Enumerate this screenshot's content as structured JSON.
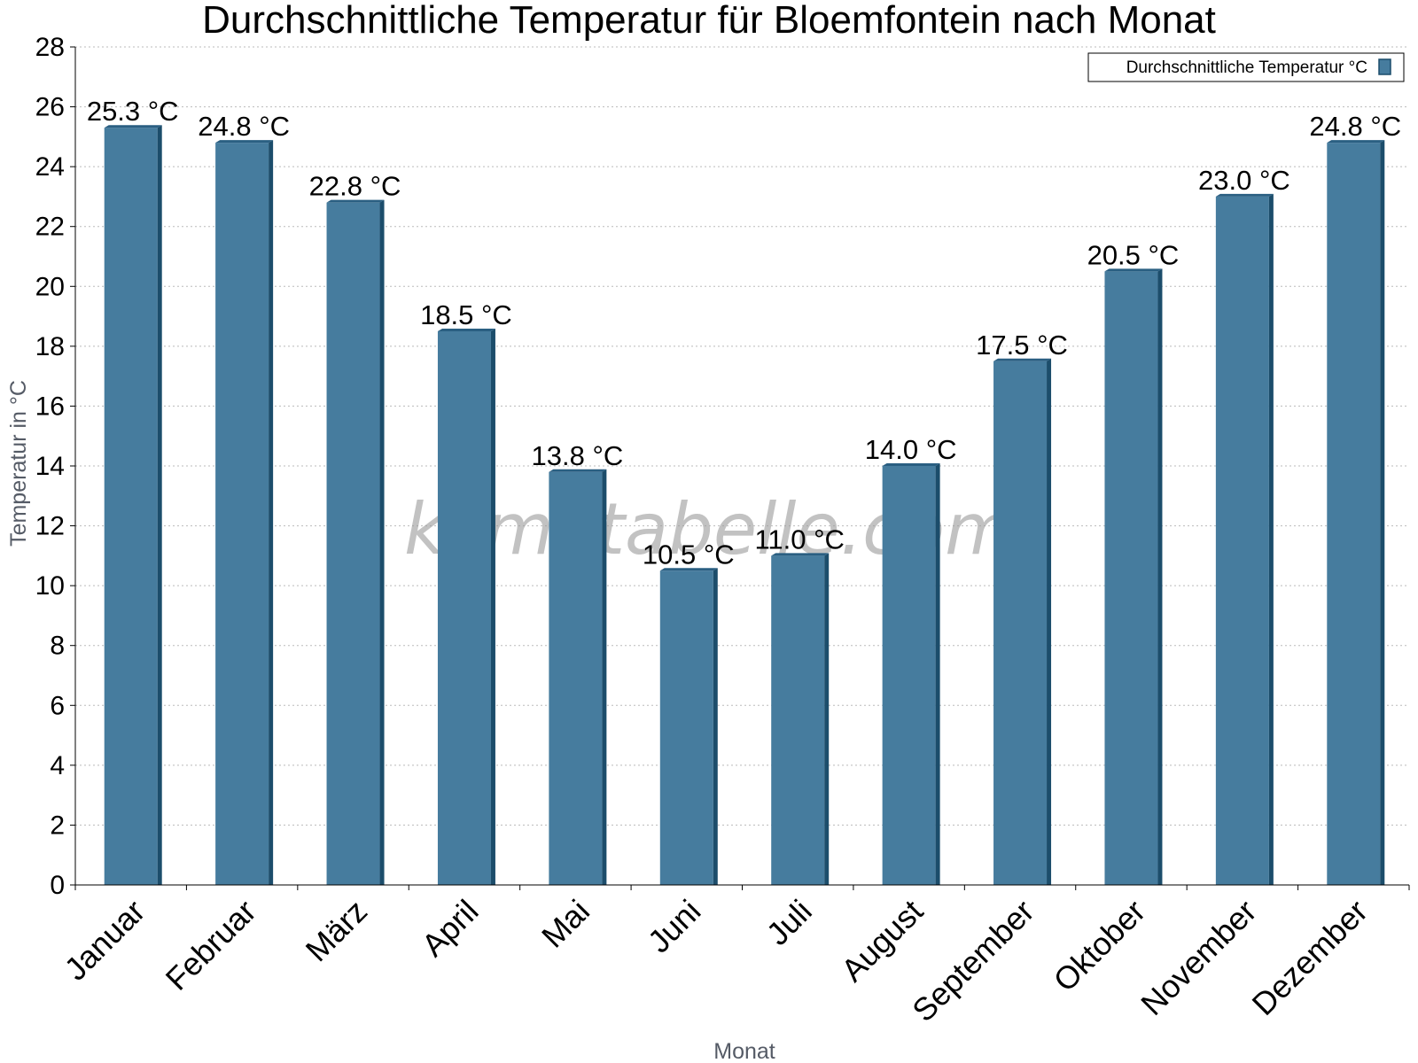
{
  "chart_data": {
    "type": "bar",
    "title": "Durchschnittliche Temperatur für Bloemfontein nach Monat",
    "xlabel": "Monat",
    "ylabel": "Temperatur in °C",
    "categories": [
      "Januar",
      "Februar",
      "März",
      "April",
      "Mai",
      "Juni",
      "Juli",
      "August",
      "September",
      "Oktober",
      "November",
      "Dezember"
    ],
    "series": [
      {
        "name": "Durchschnittliche Temperatur °C",
        "values": [
          25.3,
          24.8,
          22.8,
          18.5,
          13.8,
          10.5,
          11.0,
          14.0,
          17.5,
          20.5,
          23.0,
          24.8
        ],
        "value_labels": [
          "25.3 °C",
          "24.8 °C",
          "22.8 °C",
          "18.5 °C",
          "13.8 °C",
          "10.5 °C",
          "11.0 °C",
          "14.0 °C",
          "17.5 °C",
          "20.5 °C",
          "23.0 °C",
          "24.8 °C"
        ],
        "color": "#467c9e"
      }
    ],
    "ylim": [
      0,
      28
    ],
    "yticks": [
      0,
      2,
      4,
      6,
      8,
      10,
      12,
      14,
      16,
      18,
      20,
      22,
      24,
      26,
      28
    ],
    "grid": true,
    "legend": "top-right",
    "colors": {
      "bar_face": "#467c9e",
      "bar_side": "#1c4d6b",
      "bar_top": "#2a5f82",
      "axis": "#000000",
      "grid": "#bbbbbb"
    }
  },
  "watermark": "klimatabelle.com"
}
